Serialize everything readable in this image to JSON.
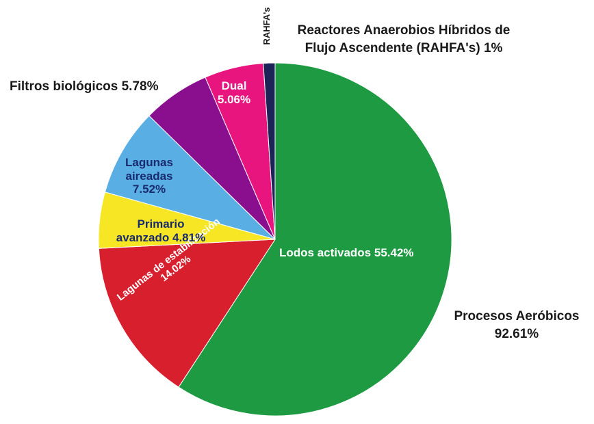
{
  "chart_data": {
    "type": "pie",
    "slices": [
      {
        "key": "lodos",
        "label": "Lodos activados",
        "value": 55.42,
        "color": "#1e9a43",
        "label_color": "#ffffff"
      },
      {
        "key": "lagunas_est",
        "label": "Lagunas de estabilización",
        "value": 14.02,
        "color": "#d81f2e",
        "label_color": "#ffffff"
      },
      {
        "key": "primario",
        "label": "Primario avanzado",
        "value": 4.81,
        "color": "#f6e623",
        "label_color": "#1a2a6e"
      },
      {
        "key": "lagunas_air",
        "label": "Lagunas aireadas",
        "value": 7.52,
        "color": "#59aee3",
        "label_color": "#1a2a6e"
      },
      {
        "key": "filtros",
        "label": "Filtros biológicos",
        "value": 5.78,
        "color": "#8a0f8f",
        "label_color": "#1a1a1a"
      },
      {
        "key": "dual",
        "label": "Dual",
        "value": 5.06,
        "color": "#e8157f",
        "label_color": "#ffffff"
      },
      {
        "key": "rahfa",
        "label": "Reactores Anaerobios Híbridos de Flujo Ascendente (RAHFA's)",
        "value": 1,
        "color": "#1b2357",
        "label_color": "#1a1a1a"
      }
    ],
    "texts": {
      "lodos": "Lodos activados 55.42%",
      "lagunas_est_1": "Lagunas de estabilización",
      "lagunas_est_2": "14.02%",
      "primario_1": "Primario",
      "primario_2": "avanzado 4.81%",
      "lagunas_air_1": "Lagunas",
      "lagunas_air_2": "aireadas",
      "lagunas_air_3": "7.52%",
      "filtros": "Filtros biológicos 5.78%",
      "dual_1": "Dual",
      "dual_2": "5.06%",
      "rahfa_short": "RAHFA's",
      "rahfa_1": "Reactores Anaerobios Híbridos de",
      "rahfa_2": "Flujo Ascendente (RAHFA's) 1%",
      "aerobicos_1": "Procesos Aeróbicos",
      "aerobicos_2": "92.61%"
    }
  }
}
